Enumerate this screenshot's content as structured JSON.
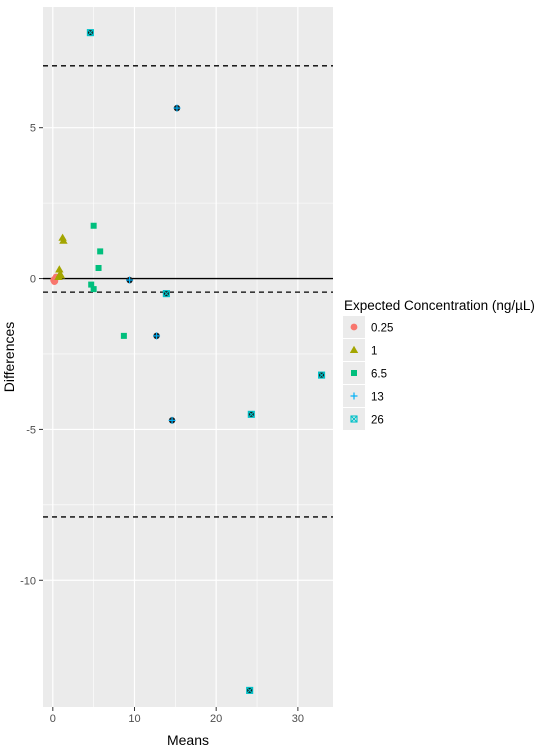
{
  "chart_data": {
    "type": "scatter",
    "title": "",
    "xlabel": "Means",
    "ylabel": "Differences",
    "xlim": [
      -1.2,
      34.3
    ],
    "ylim": [
      -14.2,
      9.0
    ],
    "x_ticks": [
      0,
      10,
      20,
      30
    ],
    "y_ticks": [
      5,
      0,
      -5,
      -10
    ],
    "grid": true,
    "legend_position": "right",
    "legend_title": "Expected Concentration (ng/µL)",
    "hlines": [
      {
        "y": 0,
        "style": "solid"
      },
      {
        "y": 7.05,
        "style": "dashed"
      },
      {
        "y": -0.45,
        "style": "dashed"
      },
      {
        "y": -7.9,
        "style": "dashed"
      }
    ],
    "series": [
      {
        "name": "0.25",
        "color": "#F8766D",
        "shape": "circle",
        "points": [
          [
            0.1,
            -0.05
          ],
          [
            0.2,
            -0.1
          ],
          [
            0.3,
            0.0
          ],
          [
            0.15,
            -0.05
          ],
          [
            0.4,
            0.05
          ],
          [
            0.25,
            -0.08
          ]
        ]
      },
      {
        "name": "1",
        "color": "#A3A500",
        "shape": "triangle",
        "points": [
          [
            0.8,
            0.3
          ],
          [
            0.9,
            0.15
          ],
          [
            1.2,
            1.35
          ],
          [
            1.3,
            1.25
          ],
          [
            0.7,
            0.05
          ],
          [
            1.0,
            0.1
          ]
        ]
      },
      {
        "name": "6.5",
        "color": "#00BF7D",
        "shape": "square",
        "points": [
          [
            5.0,
            1.75
          ],
          [
            5.8,
            0.9
          ],
          [
            5.6,
            0.35
          ],
          [
            4.7,
            -0.2
          ],
          [
            5.0,
            -0.35
          ],
          [
            8.7,
            -1.9
          ]
        ]
      },
      {
        "name": "13",
        "color": "#00B0F6",
        "shape": "plus",
        "points": [
          [
            9.4,
            -0.05
          ],
          [
            12.7,
            -1.9
          ],
          [
            14.6,
            -4.7
          ],
          [
            15.2,
            5.65
          ]
        ]
      },
      {
        "name": "26",
        "color": "#00C1C8",
        "shape": "boxx",
        "points": [
          [
            4.6,
            8.15
          ],
          [
            13.9,
            -0.5
          ],
          [
            24.3,
            -4.5
          ],
          [
            32.9,
            -3.2
          ],
          [
            24.1,
            -13.65
          ]
        ]
      }
    ]
  }
}
